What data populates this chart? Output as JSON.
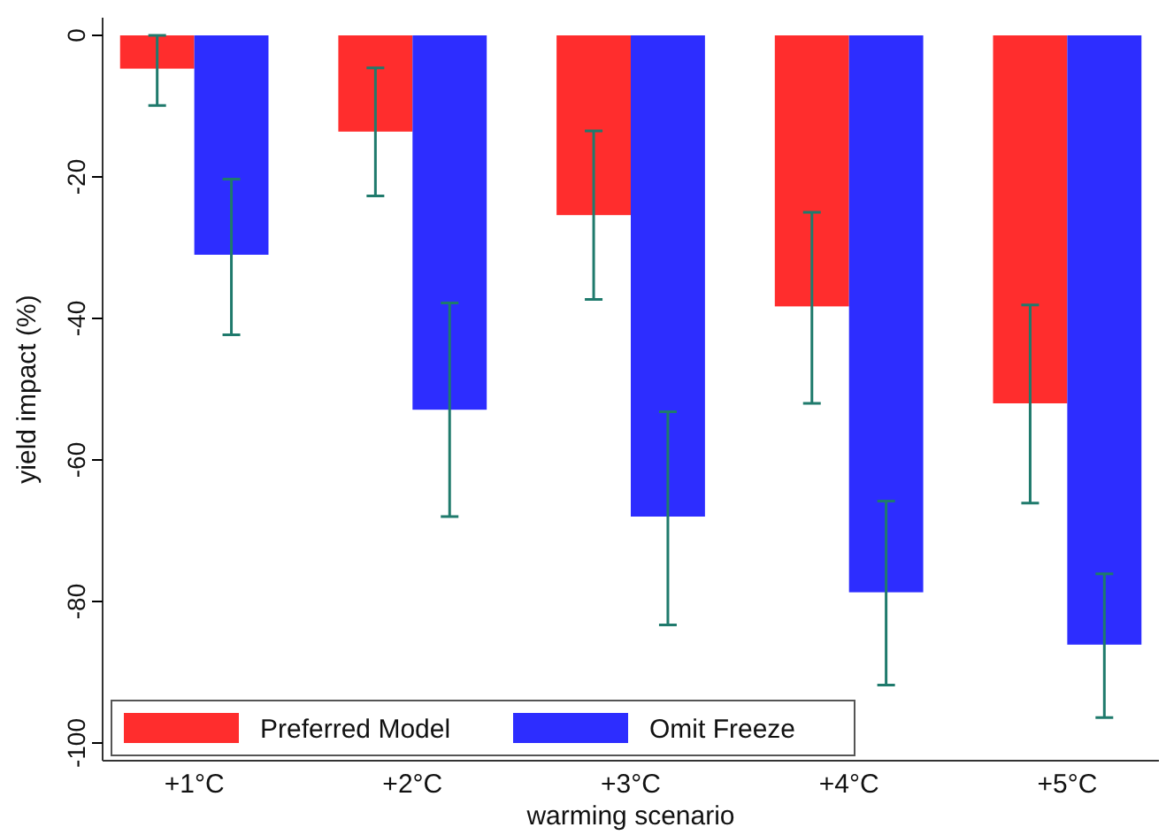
{
  "chart_data": {
    "type": "bar",
    "xlabel": "warming scenario",
    "ylabel": "yield impact (%)",
    "categories": [
      "+1°C",
      "+2°C",
      "+3°C",
      "+4°C",
      "+5°C"
    ],
    "series": [
      {
        "name": "Preferred Model",
        "color": "#ff2d2d",
        "values": [
          -4.7,
          -13.6,
          -25.4,
          -38.3,
          -52.0
        ],
        "errors": [
          [
            -9.9,
            0
          ],
          [
            -22.7,
            -4.6
          ],
          [
            -37.3,
            -13.5
          ],
          [
            -52.0,
            -25.0
          ],
          [
            -66.1,
            -38.1
          ]
        ]
      },
      {
        "name": "Omit Freeze",
        "color": "#2d2dff",
        "values": [
          -31.0,
          -52.9,
          -68.0,
          -78.7,
          -86.1
        ],
        "errors": [
          [
            -42.3,
            -20.3
          ],
          [
            -68.0,
            -37.8
          ],
          [
            -83.3,
            -53.2
          ],
          [
            -91.8,
            -65.8
          ],
          [
            -96.4,
            -76.1
          ]
        ]
      }
    ],
    "ylim": [
      -102.5,
      2.5
    ],
    "yticks": [
      0,
      -20,
      -40,
      -60,
      -80,
      -100
    ],
    "grid": false,
    "legend": "bottom"
  }
}
